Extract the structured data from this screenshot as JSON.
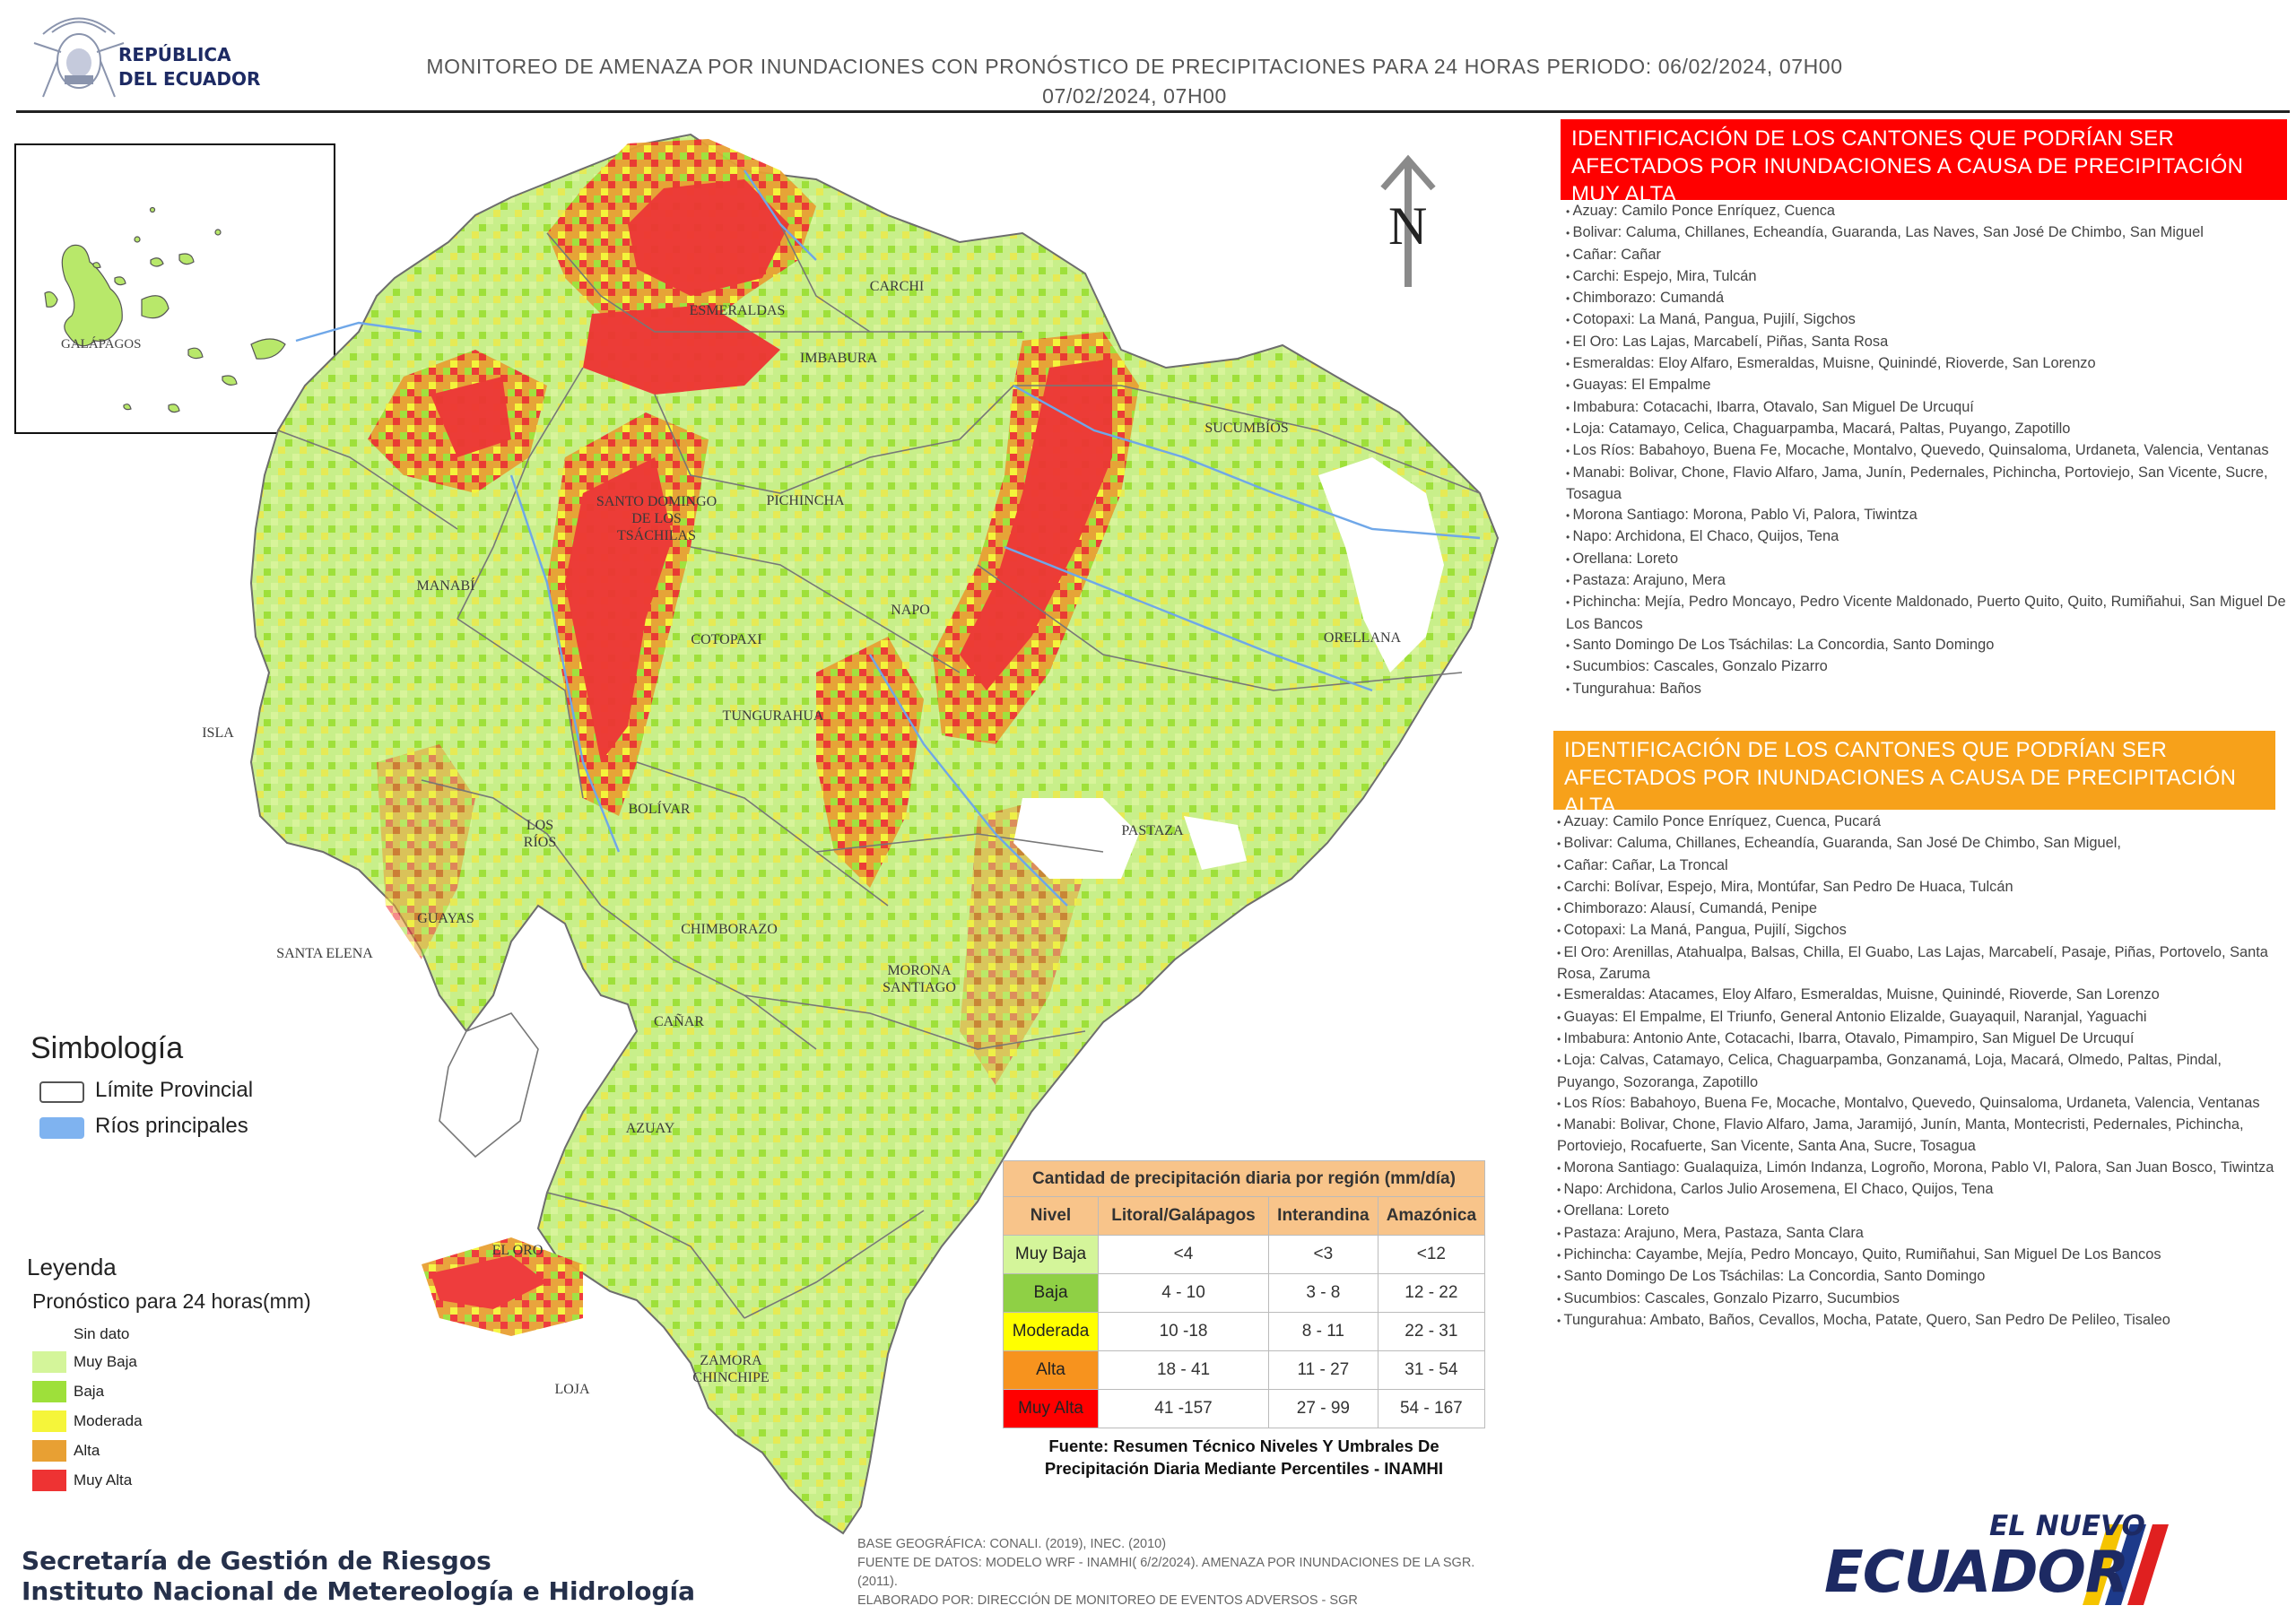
{
  "header": {
    "logo_text": "REPÚBLICA\nDEL ECUADOR",
    "title": "MONITOREO DE AMENAZA POR INUNDACIONES  CON PRONÓSTICO DE  PRECIPITACIONES PARA 24 HORAS  PERIODO: 06/02/2024, 07H00\n07/02/2024, 07H00"
  },
  "inset": {
    "label": "GALÁPAGOS"
  },
  "map": {
    "north": "N",
    "provinces": [
      {
        "id": "esmeraldas",
        "name": "ESMERALDAS"
      },
      {
        "id": "carchi",
        "name": "CARCHI"
      },
      {
        "id": "imbabura",
        "name": "IMBABURA"
      },
      {
        "id": "sucumbios",
        "name": "SUCUMBÍOS"
      },
      {
        "id": "santo-domingo",
        "name": "SANTO DOMINGO\nDE LOS\nTSÁCHILAS"
      },
      {
        "id": "pichincha",
        "name": "PICHINCHA"
      },
      {
        "id": "manabi",
        "name": "MANABÍ"
      },
      {
        "id": "napo",
        "name": "NAPO"
      },
      {
        "id": "orellana",
        "name": "ORELLANA"
      },
      {
        "id": "cotopaxi",
        "name": "COTOPAXI"
      },
      {
        "id": "tungurahua",
        "name": "TUNGURAHUA"
      },
      {
        "id": "isla",
        "name": "ISLA"
      },
      {
        "id": "bolivar",
        "name": "BOLÍVAR"
      },
      {
        "id": "los-rios",
        "name": "LOS\nRÍOS"
      },
      {
        "id": "pastaza",
        "name": "PASTAZA"
      },
      {
        "id": "guayas",
        "name": "GUAYAS"
      },
      {
        "id": "chimborazo",
        "name": "CHIMBORAZO"
      },
      {
        "id": "santa-elena",
        "name": "SANTA ELENA"
      },
      {
        "id": "morona-santiago",
        "name": "MORONA\nSANTIAGO"
      },
      {
        "id": "canar",
        "name": "CAÑAR"
      },
      {
        "id": "azuay",
        "name": "AZUAY"
      },
      {
        "id": "el-oro",
        "name": "EL ORO"
      },
      {
        "id": "loja",
        "name": "LOJA"
      },
      {
        "id": "zamora",
        "name": "ZAMORA\nCHINCHIPE"
      }
    ]
  },
  "panels": {
    "red_title": "IDENTIFICACIÓN DE LOS CANTONES QUE PODRÍAN SER AFECTADOS POR INUNDACIONES  A CAUSA DE PRECIPITACIÓN MUY ALTA",
    "red_items": [
      "Azuay: Camilo Ponce Enríquez, Cuenca",
      "Bolivar: Caluma, Chillanes, Echeandía, Guaranda, Las Naves, San José De Chimbo, San Miguel",
      "Cañar: Cañar",
      "Carchi: Espejo, Mira, Tulcán",
      "Chimborazo: Cumandá",
      "Cotopaxi: La Maná, Pangua, Pujilí, Sigchos",
      "El Oro: Las Lajas, Marcabelí, Piñas, Santa Rosa",
      "Esmeraldas: Eloy Alfaro, Esmeraldas, Muisne, Quinindé, Rioverde, San Lorenzo",
      "Guayas: El Empalme",
      "Imbabura: Cotacachi, Ibarra, Otavalo, San Miguel De Urcuquí",
      "Loja: Catamayo, Celica, Chaguarpamba, Macará, Paltas, Puyango, Zapotillo",
      "Los Ríos: Babahoyo, Buena Fe, Mocache, Montalvo, Quevedo, Quinsaloma, Urdaneta, Valencia, Ventanas",
      "Manabi: Bolivar, Chone, Flavio Alfaro, Jama, Junín, Pedernales, Pichincha, Portoviejo, San Vicente, Sucre, Tosagua",
      "Morona Santiago: Morona, Pablo Vi, Palora, Tiwintza",
      "Napo: Archidona, El Chaco, Quijos, Tena",
      "Orellana: Loreto",
      "Pastaza: Arajuno, Mera",
      "Pichincha: Mejía, Pedro Moncayo, Pedro Vicente Maldonado, Puerto Quito, Quito, Rumiñahui, San Miguel De Los Bancos",
      "Santo Domingo De Los Tsáchilas: La Concordia, Santo Domingo",
      "Sucumbios: Cascales, Gonzalo Pizarro",
      "Tungurahua: Baños"
    ],
    "orange_title": "IDENTIFICACIÓN DE LOS CANTONES QUE  PODRÍAN SER AFECTADOS POR INUNDACIONES  A CAUSA DE PRECIPITACIÓN  ALTA",
    "orange_items": [
      "Azuay: Camilo Ponce Enríquez, Cuenca, Pucará",
      "Bolivar: Caluma, Chillanes, Echeandía, Guaranda, San José De Chimbo, San Miguel,",
      "Cañar: Cañar, La Troncal",
      "Carchi: Bolívar, Espejo, Mira, Montúfar, San Pedro De Huaca, Tulcán",
      "Chimborazo: Alausí, Cumandá, Penipe",
      "Cotopaxi: La Maná, Pangua, Pujilí, Sigchos",
      "El Oro: Arenillas, Atahualpa, Balsas, Chilla, El Guabo, Las Lajas, Marcabelí, Pasaje, Piñas, Portovelo, Santa Rosa, Zaruma",
      "Esmeraldas: Atacames, Eloy Alfaro, Esmeraldas, Muisne, Quinindé, Rioverde, San Lorenzo",
      "Guayas: El Empalme, El Triunfo, General Antonio Elizalde, Guayaquil, Naranjal, Yaguachi",
      "Imbabura: Antonio Ante, Cotacachi, Ibarra, Otavalo, Pimampiro, San Miguel De Urcuquí",
      "Loja: Calvas, Catamayo, Celica, Chaguarpamba, Gonzanamá, Loja, Macará, Olmedo, Paltas, Pindal, Puyango, Sozoranga, Zapotillo",
      "Los Ríos: Babahoyo, Buena Fe, Mocache, Montalvo, Quevedo, Quinsaloma, Urdaneta, Valencia, Ventanas",
      "Manabi: Bolivar, Chone, Flavio Alfaro, Jama, Jaramijó, Junín, Manta, Montecristi, Pedernales, Pichincha, Portoviejo, Rocafuerte, San Vicente, Santa Ana, Sucre, Tosagua",
      "Morona Santiago: Gualaquiza, Limón Indanza, Logroño, Morona, Pablo VI, Palora, San Juan Bosco, Tiwintza",
      "Napo: Archidona, Carlos Julio Arosemena, El Chaco, Quijos, Tena",
      "Orellana: Loreto",
      "Pastaza: Arajuno, Mera, Pastaza, Santa Clara",
      "Pichincha: Cayambe, Mejía, Pedro Moncayo, Quito, Rumiñahui, San Miguel De Los Bancos",
      "Santo Domingo De Los Tsáchilas: La Concordia, Santo Domingo",
      "Sucumbios: Cascales, Gonzalo Pizarro, Sucumbios",
      "Tungurahua: Ambato, Baños, Cevallos, Mocha, Patate, Quero, San Pedro De Pelileo, Tisaleo"
    ]
  },
  "symbology": {
    "title": "Simbología",
    "items": [
      {
        "label": "Límite Provincial",
        "color": "#ffffff"
      },
      {
        "label": "Ríos principales",
        "color": "#7fb3f0"
      }
    ]
  },
  "legend": {
    "title": "Leyenda",
    "subtitle": "Pronóstico para 24 horas(mm)",
    "items": [
      {
        "label": "Sin dato",
        "color": "#ffffff"
      },
      {
        "label": "Muy Baja",
        "color": "#d4f59a"
      },
      {
        "label": "Baja",
        "color": "#9ee03a"
      },
      {
        "label": "Moderada",
        "color": "#f5f53a"
      },
      {
        "label": "Alta",
        "color": "#e8a033"
      },
      {
        "label": "Muy Alta",
        "color": "#ee3333"
      }
    ]
  },
  "precip_table": {
    "caption": "Cantidad de precipitación diaria por región (mm/día)",
    "headers": [
      "Nivel",
      "Litoral/Galápagos",
      "Interandina",
      "Amazónica"
    ],
    "rows": [
      {
        "level": "Muy Baja",
        "color": "#d4f59a",
        "values": [
          "<4",
          "<3",
          "<12"
        ]
      },
      {
        "level": "Baja",
        "color": "#8fd045",
        "values": [
          "4 - 10",
          "3 - 8",
          "12 - 22"
        ]
      },
      {
        "level": "Moderada",
        "color": "#ffff00",
        "values": [
          "10 -18",
          "8 - 11",
          "22 - 31"
        ]
      },
      {
        "level": "Alta",
        "color": "#f7931e",
        "values": [
          "18 - 41",
          "11 - 27",
          "31 - 54"
        ]
      },
      {
        "level": "Muy Alta",
        "color": "#ff0000",
        "values": [
          "41 -157",
          "27 - 99",
          "54 - 167"
        ]
      }
    ],
    "footnote": "Fuente: Resumen Técnico Niveles Y Umbrales De\nPrecipitación Diaria Mediante Percentiles - INAMHI"
  },
  "footer": {
    "org": "Secretaría de Gestión de Riesgos\nInstituto Nacional de Metereología e Hidrología",
    "sources": "BASE GEOGRÁFICA: CONALI. (2019), INEC. (2010)\nFUENTE DE DATOS: MODELO WRF - INAMHI( 6/2/2024).  AMENAZA POR INUNDACIONES DE LA SGR. (2011).\nELABORADO POR: DIRECCIÓN DE MONITOREO DE EVENTOS ADVERSOS - SGR",
    "brand_small": "EL NUEVO",
    "brand_big": "ECUADOR"
  }
}
